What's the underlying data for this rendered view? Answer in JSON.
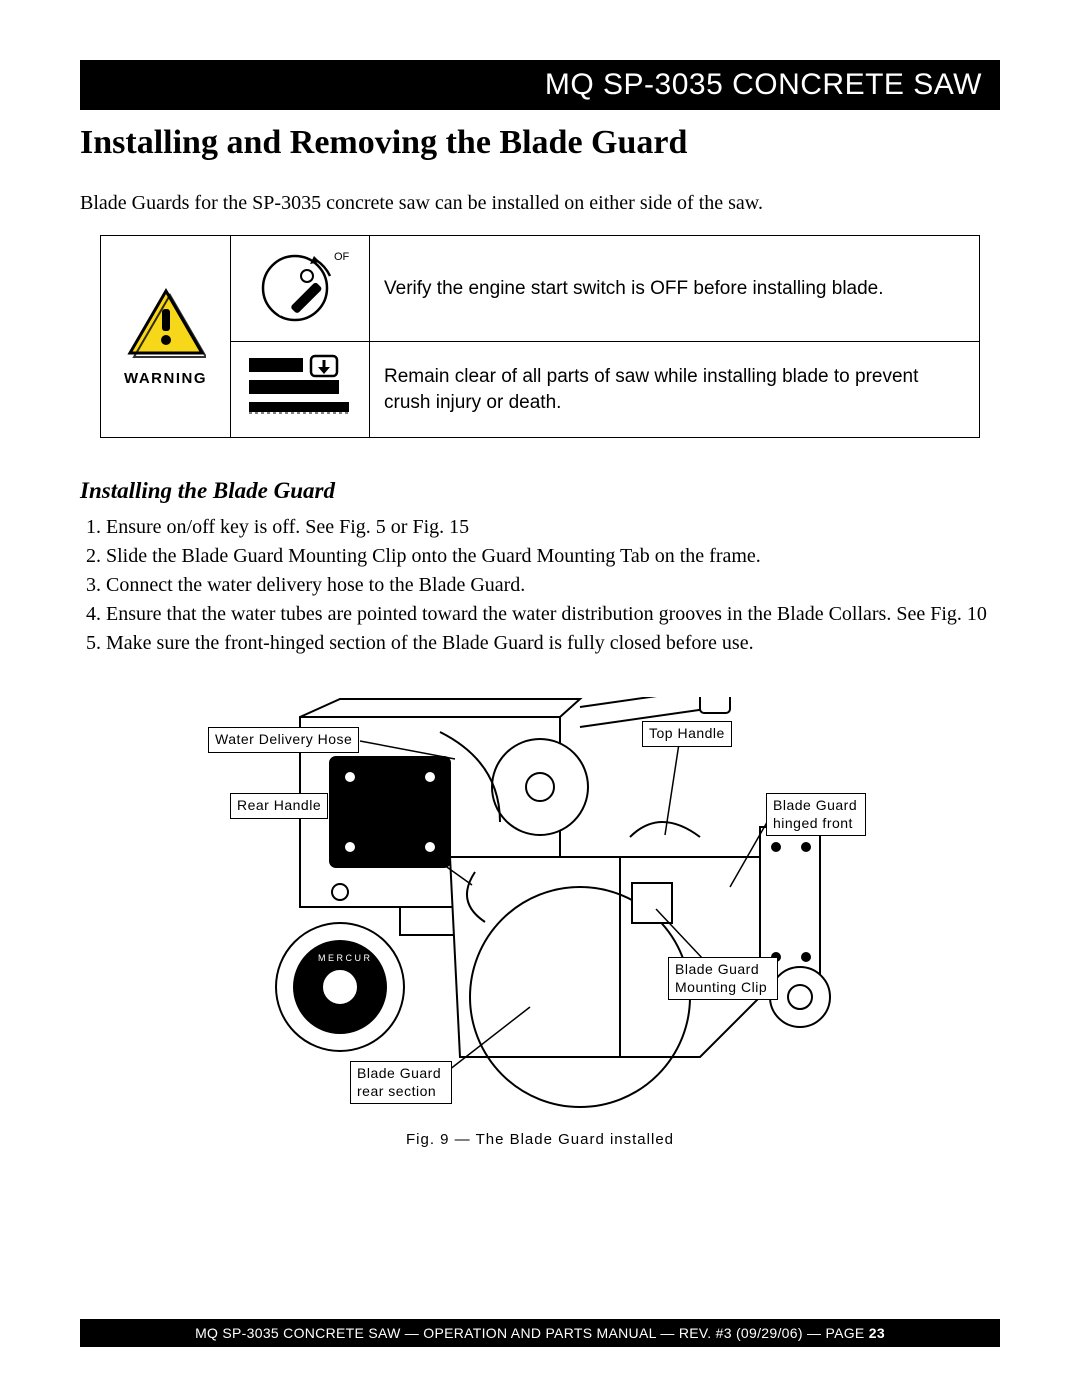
{
  "header": {
    "title": "MQ SP-3035 CONCRETE SAW"
  },
  "page": {
    "main_title": "Installing and Removing the Blade Guard",
    "intro": "Blade Guards for the SP-3035 concrete saw can be installed on either side of the saw."
  },
  "warning": {
    "label": "WARNING",
    "triangle_fill": "#f7d71a",
    "triangle_stroke": "#000000",
    "rows": [
      {
        "icon": "key-off",
        "off_label": "OFF",
        "message": "Verify the engine start switch is OFF before installing blade."
      },
      {
        "icon": "crush-hazard",
        "message": "Remain clear of all parts of saw while installing blade to prevent crush injury or death."
      }
    ]
  },
  "install": {
    "heading": "Installing the Blade Guard",
    "steps": [
      "Ensure on/off key is off. See Fig. 5 or Fig. 15",
      "Slide the Blade Guard Mounting Clip onto the Guard Mounting Tab on the frame.",
      "Connect the water delivery hose to the Blade Guard.",
      "Ensure that the water tubes are pointed toward the water distribution grooves in the Blade Collars.  See Fig. 10",
      "Make sure the front-hinged section of the Blade Guard is fully closed before use."
    ]
  },
  "figure": {
    "caption": "Fig. 9 — The Blade Guard installed",
    "callouts": {
      "water_delivery_hose": "Water Delivery Hose",
      "rear_handle": "Rear Handle",
      "top_handle": "Top Handle",
      "blade_guard_hinged_front": "Blade Guard\nhinged front",
      "blade_guard_mounting_clip": "Blade Guard\nMounting Clip",
      "blade_guard_rear_section": "Blade Guard\nrear section"
    },
    "stroke": "#000000",
    "fill": "#ffffff"
  },
  "footer": {
    "text_prefix": "MQ SP-3035 CONCRETE SAW — OPERATION AND PARTS MANUAL — REV. #3 (09/29/06) — PAGE ",
    "page_number": "23"
  }
}
